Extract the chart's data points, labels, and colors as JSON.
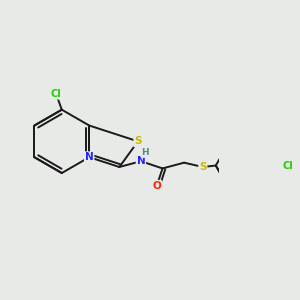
{
  "background_color": "#e8eae8",
  "bond_color": "#1a1a1a",
  "atom_colors": {
    "Cl": "#22cc00",
    "N": "#2222ff",
    "S": "#ccbb00",
    "O": "#ff2200",
    "H": "#558888",
    "C": "#1a1a1a"
  },
  "bond_width": 1.4,
  "figsize": [
    3.0,
    3.0
  ],
  "dpi": 100
}
